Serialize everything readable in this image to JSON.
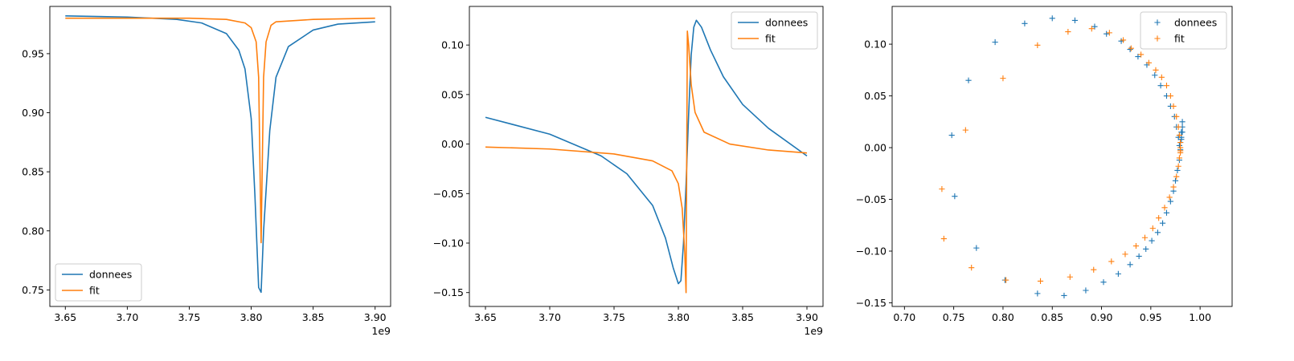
{
  "figure": {
    "colors": {
      "donnees": "#1f77b4",
      "fit": "#ff7f0e"
    }
  },
  "chart_data": [
    {
      "type": "line",
      "xlim": [
        3637500000.0,
        3912500000.0
      ],
      "ylim": [
        0.736,
        0.99
      ],
      "x_ticks": [
        3650000000.0,
        3700000000.0,
        3750000000.0,
        3800000000.0,
        3850000000.0,
        3900000000.0
      ],
      "x_tick_labels": [
        "3.65",
        "3.70",
        "3.75",
        "3.80",
        "3.85",
        "3.90"
      ],
      "x_offset_text": "1e9",
      "y_ticks": [
        0.75,
        0.8,
        0.85,
        0.9,
        0.95
      ],
      "y_tick_labels": [
        "0.75",
        "0.80",
        "0.85",
        "0.90",
        "0.95"
      ],
      "legend": {
        "position": "lower-left",
        "entries": [
          "donnees",
          "fit"
        ]
      },
      "grid": false,
      "series": [
        {
          "name": "donnees",
          "x": [
            3650000000.0,
            3700000000.0,
            3740000000.0,
            3760000000.0,
            3780000000.0,
            3790000000.0,
            3795000000.0,
            3800000000.0,
            3803000000.0,
            3806000000.0,
            3808000000.0,
            3810000000.0,
            3815000000.0,
            3820000000.0,
            3830000000.0,
            3850000000.0,
            3870000000.0,
            3900000000.0
          ],
          "y": [
            0.982,
            0.981,
            0.979,
            0.976,
            0.967,
            0.953,
            0.937,
            0.895,
            0.83,
            0.752,
            0.748,
            0.8,
            0.885,
            0.93,
            0.956,
            0.97,
            0.975,
            0.977
          ]
        },
        {
          "name": "fit",
          "x": [
            3650000000.0,
            3750000000.0,
            3780000000.0,
            3795000000.0,
            3800000000.0,
            3804000000.0,
            3806000000.0,
            3807000000.0,
            3808000000.0,
            3809000000.0,
            3810000000.0,
            3812000000.0,
            3816000000.0,
            3820000000.0,
            3850000000.0,
            3900000000.0
          ],
          "y": [
            0.98,
            0.98,
            0.979,
            0.976,
            0.972,
            0.96,
            0.93,
            0.86,
            0.79,
            0.86,
            0.93,
            0.96,
            0.974,
            0.977,
            0.979,
            0.98
          ]
        }
      ]
    },
    {
      "type": "line",
      "xlim": [
        3637500000.0,
        3912500000.0
      ],
      "ylim": [
        -0.164,
        0.139
      ],
      "x_ticks": [
        3650000000.0,
        3700000000.0,
        3750000000.0,
        3800000000.0,
        3850000000.0,
        3900000000.0
      ],
      "x_tick_labels": [
        "3.65",
        "3.70",
        "3.75",
        "3.80",
        "3.85",
        "3.90"
      ],
      "x_offset_text": "1e9",
      "y_ticks": [
        -0.15,
        -0.1,
        -0.05,
        0.0,
        0.05,
        0.1
      ],
      "y_tick_labels": [
        "−0.15",
        "−0.10",
        "−0.05",
        "0.00",
        "0.05",
        "0.10"
      ],
      "legend": {
        "position": "upper-right",
        "entries": [
          "donnees",
          "fit"
        ]
      },
      "grid": false,
      "series": [
        {
          "name": "donnees",
          "x": [
            3650000000.0,
            3700000000.0,
            3740000000.0,
            3760000000.0,
            3780000000.0,
            3790000000.0,
            3796000000.0,
            3800000000.0,
            3802000000.0,
            3804000000.0,
            3806000000.0,
            3808000000.0,
            3810000000.0,
            3812000000.0,
            3814000000.0,
            3818000000.0,
            3825000000.0,
            3835000000.0,
            3850000000.0,
            3870000000.0,
            3900000000.0
          ],
          "y": [
            0.027,
            0.01,
            -0.012,
            -0.03,
            -0.062,
            -0.095,
            -0.125,
            -0.141,
            -0.138,
            -0.1,
            -0.04,
            0.03,
            0.09,
            0.118,
            0.125,
            0.118,
            0.095,
            0.068,
            0.04,
            0.016,
            -0.012
          ]
        },
        {
          "name": "fit",
          "x": [
            3650000000.0,
            3700000000.0,
            3750000000.0,
            3780000000.0,
            3795000000.0,
            3800000000.0,
            3803000000.0,
            3805000000.0,
            3806000000.0,
            3806500000.0,
            3807000000.0,
            3808000000.0,
            3810000000.0,
            3813000000.0,
            3820000000.0,
            3840000000.0,
            3870000000.0,
            3900000000.0
          ],
          "y": [
            -0.003,
            -0.005,
            -0.01,
            -0.017,
            -0.027,
            -0.04,
            -0.065,
            -0.11,
            -0.15,
            -0.02,
            0.114,
            0.1,
            0.06,
            0.032,
            0.012,
            0.0,
            -0.006,
            -0.009
          ]
        }
      ]
    },
    {
      "type": "scatter",
      "xlim": [
        0.6875,
        1.0325
      ],
      "ylim": [
        -0.1535,
        0.1365
      ],
      "x_ticks": [
        0.7,
        0.75,
        0.8,
        0.85,
        0.9,
        0.95,
        1.0
      ],
      "x_tick_labels": [
        "0.70",
        "0.75",
        "0.80",
        "0.85",
        "0.90",
        "0.95",
        "1.00"
      ],
      "y_ticks": [
        -0.15,
        -0.1,
        -0.05,
        0.0,
        0.05,
        0.1
      ],
      "y_tick_labels": [
        "−0.15",
        "−0.10",
        "−0.05",
        "0.00",
        "0.05",
        "0.10"
      ],
      "marker": "+",
      "legend": {
        "position": "upper-right",
        "entries": [
          "donnees",
          "fit"
        ]
      },
      "grid": false,
      "series": [
        {
          "name": "donnees",
          "x": [
            0.982,
            0.982,
            0.981,
            0.981,
            0.98,
            0.979,
            0.978,
            0.976,
            0.974,
            0.97,
            0.966,
            0.96,
            0.954,
            0.946,
            0.937,
            0.929,
            0.92,
            0.905,
            0.893,
            0.873,
            0.85,
            0.822,
            0.792,
            0.765,
            0.748,
            0.751,
            0.773,
            0.802,
            0.835,
            0.862,
            0.884,
            0.902,
            0.917,
            0.929,
            0.938,
            0.945,
            0.951,
            0.957,
            0.962,
            0.966,
            0.97,
            0.973,
            0.975,
            0.977,
            0.979,
            0.98,
            0.981,
            0.982
          ],
          "y": [
            0.025,
            0.02,
            0.015,
            0.01,
            0.005,
            0.002,
            0.01,
            0.02,
            0.03,
            0.04,
            0.05,
            0.06,
            0.07,
            0.08,
            0.088,
            0.095,
            0.103,
            0.11,
            0.117,
            0.123,
            0.125,
            0.12,
            0.102,
            0.065,
            0.012,
            -0.047,
            -0.097,
            -0.128,
            -0.141,
            -0.143,
            -0.138,
            -0.13,
            -0.122,
            -0.113,
            -0.105,
            -0.098,
            -0.09,
            -0.082,
            -0.073,
            -0.063,
            -0.052,
            -0.042,
            -0.032,
            -0.022,
            -0.012,
            -0.002,
            0.008,
            0.015
          ]
        },
        {
          "name": "fit",
          "x": [
            0.98,
            0.98,
            0.98,
            0.979,
            0.978,
            0.976,
            0.973,
            0.97,
            0.966,
            0.961,
            0.955,
            0.948,
            0.94,
            0.93,
            0.922,
            0.908,
            0.89,
            0.866,
            0.835,
            0.8,
            0.762,
            0.738,
            0.74,
            0.768,
            0.803,
            0.838,
            0.868,
            0.892,
            0.91,
            0.924,
            0.935,
            0.944,
            0.952,
            0.958,
            0.964,
            0.969,
            0.973,
            0.976,
            0.978,
            0.979,
            0.98
          ],
          "y": [
            -0.005,
            0.0,
            0.005,
            0.012,
            0.02,
            0.03,
            0.04,
            0.05,
            0.06,
            0.068,
            0.075,
            0.082,
            0.09,
            0.096,
            0.104,
            0.111,
            0.115,
            0.112,
            0.099,
            0.067,
            0.017,
            -0.04,
            -0.088,
            -0.116,
            -0.128,
            -0.129,
            -0.125,
            -0.118,
            -0.11,
            -0.103,
            -0.095,
            -0.087,
            -0.078,
            -0.068,
            -0.058,
            -0.048,
            -0.038,
            -0.028,
            -0.018,
            -0.01,
            -0.003
          ]
        }
      ]
    }
  ]
}
